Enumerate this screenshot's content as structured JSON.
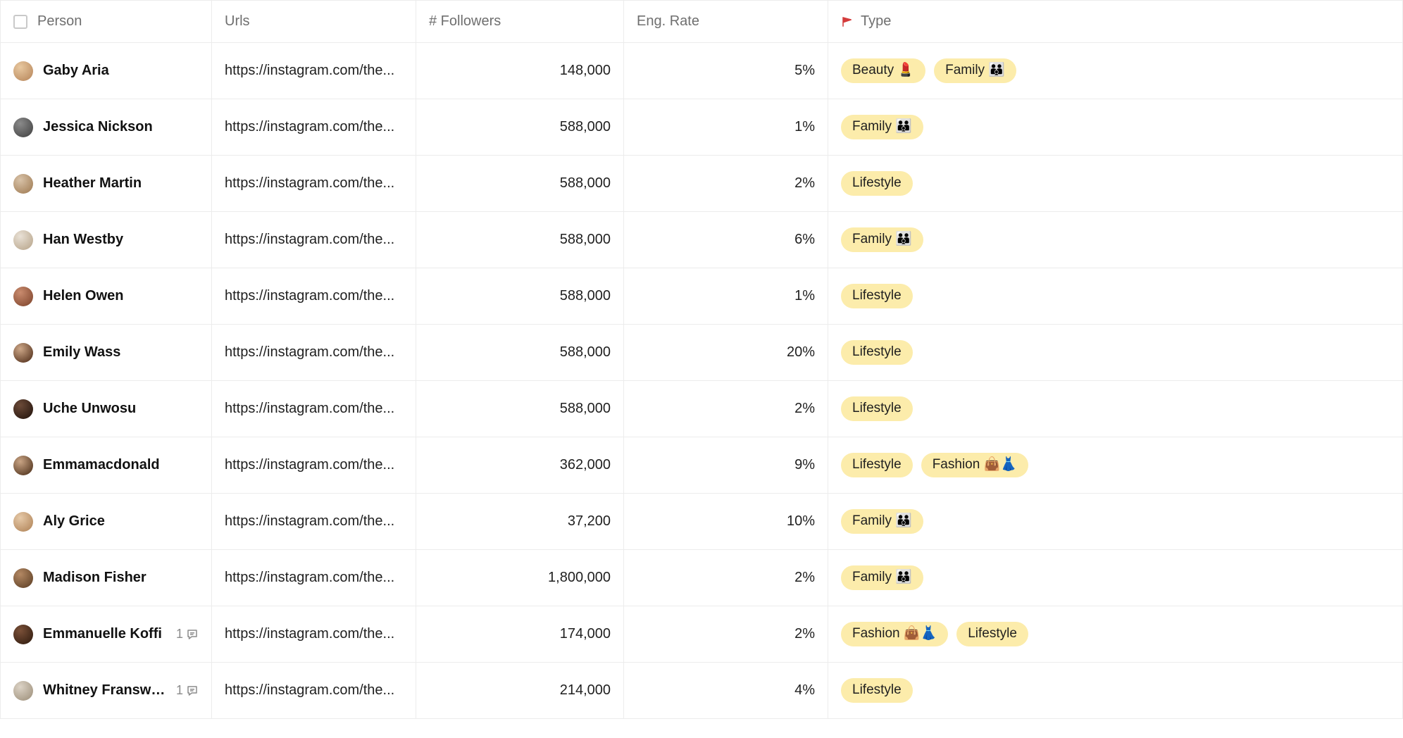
{
  "colors": {
    "tag_bg": "#fcecab",
    "tag_text": "#1f1f1f",
    "border": "#ececec",
    "header_text": "#6f6f6f",
    "row_text": "#1f1f1f",
    "muted": "#8b8b8b",
    "flag": "#d43b3b"
  },
  "columns": {
    "person": "Person",
    "urls": "Urls",
    "followers": "# Followers",
    "eng_rate": "Eng. Rate",
    "type": "Type"
  },
  "avatar_palette": [
    [
      "#e8c8a0",
      "#bf9166"
    ],
    [
      "#8a8a8a",
      "#4d4d4d"
    ],
    [
      "#d8c2a8",
      "#a88660"
    ],
    [
      "#e9e1d6",
      "#bfae96"
    ],
    [
      "#c98b6e",
      "#8a4f36"
    ],
    [
      "#cda788",
      "#623f29"
    ],
    [
      "#6b4a38",
      "#2e1c13"
    ],
    [
      "#c9a484",
      "#5e4029"
    ],
    [
      "#e6c9a8",
      "#b88e64"
    ],
    [
      "#b38863",
      "#6a4a2e"
    ],
    [
      "#7a5038",
      "#3b2315"
    ],
    [
      "#dcd3c6",
      "#a79a86"
    ]
  ],
  "rows": [
    {
      "name": "Gaby Aria",
      "url": "https://instagram.com/the...",
      "followers": "148,000",
      "eng_rate": "5%",
      "tags": [
        "Beauty 💄",
        "Family 👪"
      ],
      "comments": null
    },
    {
      "name": "Jessica Nickson",
      "url": "https://instagram.com/the...",
      "followers": "588,000",
      "eng_rate": "1%",
      "tags": [
        "Family 👪"
      ],
      "comments": null
    },
    {
      "name": "Heather Martin",
      "url": "https://instagram.com/the...",
      "followers": "588,000",
      "eng_rate": "2%",
      "tags": [
        "Lifestyle"
      ],
      "comments": null
    },
    {
      "name": "Han Westby",
      "url": "https://instagram.com/the...",
      "followers": "588,000",
      "eng_rate": "6%",
      "tags": [
        "Family 👪"
      ],
      "comments": null
    },
    {
      "name": "Helen Owen",
      "url": "https://instagram.com/the...",
      "followers": "588,000",
      "eng_rate": "1%",
      "tags": [
        "Lifestyle"
      ],
      "comments": null
    },
    {
      "name": "Emily Wass",
      "url": "https://instagram.com/the...",
      "followers": "588,000",
      "eng_rate": "20%",
      "tags": [
        "Lifestyle"
      ],
      "comments": null
    },
    {
      "name": "Uche Unwosu",
      "url": "https://instagram.com/the...",
      "followers": "588,000",
      "eng_rate": "2%",
      "tags": [
        "Lifestyle"
      ],
      "comments": null
    },
    {
      "name": "Emmamacdonald",
      "url": "https://instagram.com/the...",
      "followers": "362,000",
      "eng_rate": "9%",
      "tags": [
        "Lifestyle",
        "Fashion 👜👗"
      ],
      "comments": null
    },
    {
      "name": "Aly Grice",
      "url": "https://instagram.com/the...",
      "followers": "37,200",
      "eng_rate": "10%",
      "tags": [
        "Family 👪"
      ],
      "comments": null
    },
    {
      "name": "Madison Fisher",
      "url": "https://instagram.com/the...",
      "followers": "1,800,000",
      "eng_rate": "2%",
      "tags": [
        "Family 👪"
      ],
      "comments": null
    },
    {
      "name": "Emmanuelle Koffi",
      "url": "https://instagram.com/the...",
      "followers": "174,000",
      "eng_rate": "2%",
      "tags": [
        "Fashion 👜👗",
        "Lifestyle"
      ],
      "comments": "1"
    },
    {
      "name": "Whitney Fransway",
      "url": "https://instagram.com/the...",
      "followers": "214,000",
      "eng_rate": "4%",
      "tags": [
        "Lifestyle"
      ],
      "comments": "1"
    }
  ]
}
